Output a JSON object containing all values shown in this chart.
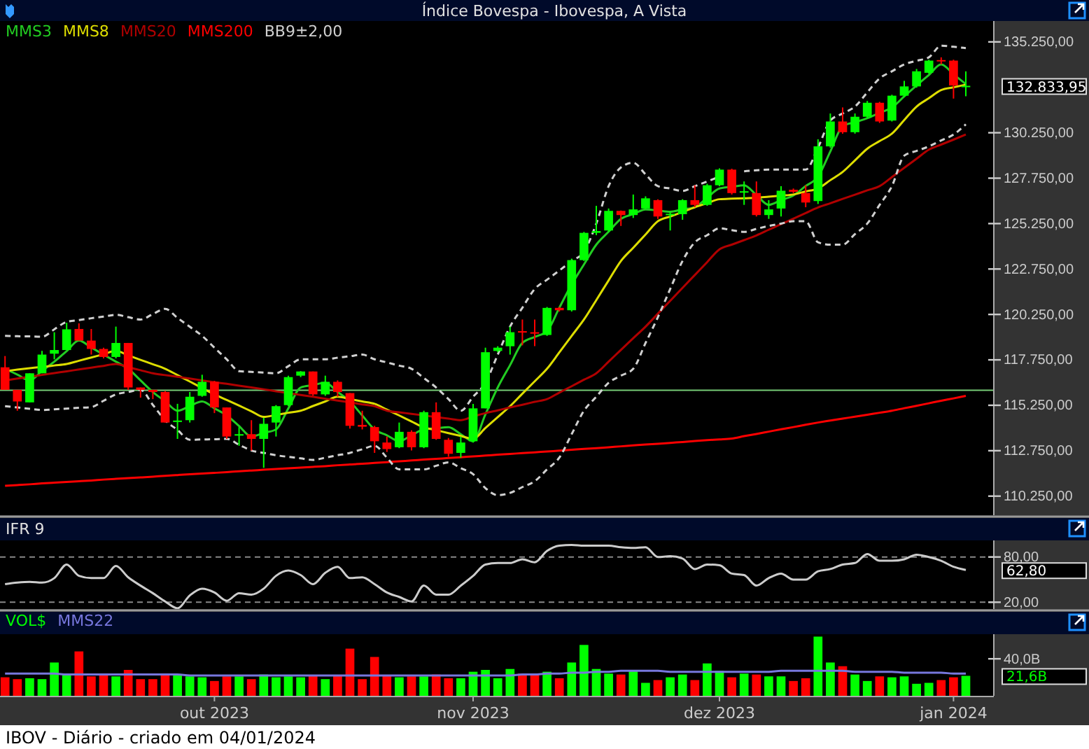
{
  "chart_data": [
    {
      "type": "candlestick",
      "title": "Índice Bovespa - Ibovespa, A Vista",
      "legend": "top left",
      "tick_labels": "y",
      "categories": [
        null,
        null,
        null,
        null,
        null,
        null,
        null,
        null,
        null,
        null,
        null,
        null,
        null,
        null,
        null,
        null,
        null,
        null,
        null,
        null,
        null,
        null,
        null,
        null,
        null,
        null,
        null,
        null,
        null,
        null,
        null,
        null,
        null,
        null,
        null,
        null,
        null,
        null,
        null,
        null,
        null,
        null,
        null,
        null,
        null,
        null,
        null,
        null,
        null,
        null,
        null,
        null,
        null,
        null,
        null,
        null,
        null,
        null,
        null,
        null,
        null,
        null,
        null,
        null,
        null,
        null,
        null,
        null,
        null,
        null,
        null,
        null,
        null,
        null,
        null,
        null,
        null,
        null,
        null
      ],
      "ohlc": [
        [
          117340,
          117960,
          116100,
          116100
        ],
        [
          116100,
          116100,
          114950,
          115460
        ],
        [
          115410,
          117010,
          115410,
          117010
        ],
        [
          117010,
          118240,
          117010,
          118040
        ],
        [
          118090,
          119270,
          117780,
          118290
        ],
        [
          118290,
          119790,
          118290,
          119430
        ],
        [
          119450,
          119760,
          118810,
          118810
        ],
        [
          118810,
          119450,
          118040,
          118350
        ],
        [
          118350,
          118420,
          117830,
          117910
        ],
        [
          117910,
          119580,
          117830,
          118680
        ],
        [
          118680,
          118680,
          116100,
          116230
        ],
        [
          116230,
          116230,
          115670,
          116100
        ],
        [
          116100,
          116100,
          115590,
          115980
        ],
        [
          115980,
          116030,
          114300,
          114300
        ],
        [
          114330,
          115330,
          113400,
          114410
        ],
        [
          114430,
          115980,
          114300,
          115720
        ],
        [
          115770,
          116930,
          115720,
          116540
        ],
        [
          116540,
          116590,
          114820,
          115130
        ],
        [
          115130,
          115130,
          113400,
          113530
        ],
        [
          113580,
          114050,
          113020,
          113660
        ],
        [
          113660,
          114430,
          112760,
          113400
        ],
        [
          113400,
          114560,
          111810,
          114230
        ],
        [
          114300,
          115260,
          113530,
          115200
        ],
        [
          115260,
          116880,
          115200,
          116800
        ],
        [
          116880,
          117130,
          116800,
          117110
        ],
        [
          117110,
          117110,
          115770,
          115850
        ],
        [
          115850,
          116880,
          115770,
          116540
        ],
        [
          116540,
          116620,
          115720,
          115980
        ],
        [
          115920,
          115920,
          113970,
          114120
        ],
        [
          114170,
          114950,
          113920,
          114070
        ],
        [
          114050,
          114120,
          112630,
          113270
        ],
        [
          113200,
          113530,
          112680,
          112840
        ],
        [
          112940,
          114300,
          112890,
          113790
        ],
        [
          113790,
          113870,
          112760,
          112940
        ],
        [
          112940,
          114950,
          112890,
          114870
        ],
        [
          114870,
          115410,
          113350,
          113400
        ],
        [
          113350,
          113450,
          112420,
          112580
        ],
        [
          112630,
          113530,
          112370,
          113200
        ],
        [
          113270,
          115330,
          113200,
          115080
        ],
        [
          115080,
          118420,
          115080,
          118170
        ],
        [
          118240,
          118500,
          118170,
          118420
        ],
        [
          118500,
          119580,
          118040,
          119270
        ],
        [
          119330,
          119970,
          118550,
          119250
        ],
        [
          119270,
          119970,
          118500,
          119220
        ],
        [
          119120,
          120660,
          119070,
          120610
        ],
        [
          120610,
          120660,
          120410,
          120480
        ],
        [
          120480,
          123320,
          120410,
          123240
        ],
        [
          123240,
          124790,
          123190,
          124740
        ],
        [
          124740,
          126230,
          124610,
          124840
        ],
        [
          124870,
          126080,
          124810,
          125950
        ],
        [
          125950,
          125970,
          125120,
          125720
        ],
        [
          125720,
          126850,
          125560,
          126030
        ],
        [
          126080,
          126750,
          126030,
          126640
        ],
        [
          126540,
          126590,
          125510,
          125640
        ],
        [
          125720,
          125900,
          124870,
          125790
        ],
        [
          125770,
          126590,
          125460,
          126540
        ],
        [
          126540,
          127360,
          126150,
          126280
        ],
        [
          126280,
          127440,
          126230,
          127360
        ],
        [
          127360,
          128290,
          127310,
          128220
        ],
        [
          128220,
          128270,
          126850,
          126930
        ],
        [
          126980,
          127570,
          126280,
          127030
        ],
        [
          126930,
          127570,
          125640,
          125720
        ],
        [
          125720,
          126540,
          125510,
          126030
        ],
        [
          126080,
          127310,
          125640,
          127060
        ],
        [
          127110,
          127180,
          126930,
          127000
        ],
        [
          126930,
          127360,
          126150,
          126410
        ],
        [
          126490,
          129890,
          126330,
          129500
        ],
        [
          129500,
          131310,
          129430,
          130870
        ],
        [
          130870,
          131640,
          130200,
          130280
        ],
        [
          130280,
          131310,
          130200,
          131130
        ],
        [
          131130,
          132000,
          131050,
          131900
        ],
        [
          131900,
          131950,
          130790,
          130870
        ],
        [
          130920,
          132340,
          130870,
          132290
        ],
        [
          132290,
          133110,
          132210,
          132800
        ],
        [
          132800,
          133760,
          132730,
          133630
        ],
        [
          133550,
          134270,
          133500,
          134220
        ],
        [
          134250,
          134400,
          134010,
          134190
        ],
        [
          134220,
          134270,
          132130,
          132850
        ],
        [
          132830,
          133630,
          132260,
          132833.95
        ]
      ],
      "colors": [
        "#ff0000",
        "#ff0000",
        "#00ff00",
        "#00ff00",
        "#00ff00",
        "#00ff00",
        "#ff0000",
        "#ff0000",
        "#ff0000",
        "#00ff00",
        "#ff0000",
        "#ff0000",
        "#ff0000",
        "#ff0000",
        "#00ff00",
        "#00ff00",
        "#00ff00",
        "#ff0000",
        "#ff0000",
        "#00ff00",
        "#ff0000",
        "#00ff00",
        "#00ff00",
        "#00ff00",
        "#00ff00",
        "#ff0000",
        "#00ff00",
        "#ff0000",
        "#ff0000",
        "#ff0000",
        "#ff0000",
        "#ff0000",
        "#00ff00",
        "#ff0000",
        "#00ff00",
        "#ff0000",
        "#ff0000",
        "#00ff00",
        "#00ff00",
        "#00ff00",
        "#00ff00",
        "#00ff00",
        "#ff0000",
        "#ff0000",
        "#00ff00",
        "#ff0000",
        "#00ff00",
        "#00ff00",
        "#00ff00",
        "#00ff00",
        "#ff0000",
        "#00ff00",
        "#00ff00",
        "#ff0000",
        "#00ff00",
        "#00ff00",
        "#ff0000",
        "#00ff00",
        "#00ff00",
        "#ff0000",
        "#00ff00",
        "#ff0000",
        "#00ff00",
        "#00ff00",
        "#ff0000",
        "#ff0000",
        "#00ff00",
        "#00ff00",
        "#ff0000",
        "#00ff00",
        "#00ff00",
        "#ff0000",
        "#00ff00",
        "#00ff00",
        "#00ff00",
        "#00ff00",
        "#ff0000",
        "#ff0000",
        "#00ff00"
      ],
      "series": [
        {
          "name": "MMS3",
          "type": "line",
          "color": "#22cc22",
          "values": [
            117260,
            116940,
            116620,
            117140,
            117650,
            118230,
            118810,
            118430,
            118040,
            117650,
            117260,
            116620,
            115980,
            115470,
            114950,
            115210,
            115460,
            115080,
            114690,
            114110,
            113530,
            113730,
            113920,
            115080,
            116230,
            116360,
            116490,
            115980,
            115460,
            114690,
            113920,
            113600,
            113270,
            113600,
            113920,
            113980,
            114040,
            113660,
            113270,
            114750,
            116230,
            117460,
            118680,
            119010,
            119330,
            120620,
            121900,
            123000,
            124090,
            124800,
            125510,
            125770,
            126030,
            125970,
            125900,
            126030,
            126150,
            126670,
            127180,
            127270,
            127360,
            126820,
            126280,
            126540,
            126800,
            127320,
            127830,
            129220,
            130610,
            130830,
            131050,
            131350,
            131640,
            132250,
            132850,
            133430,
            134010,
            133470,
            132930
          ]
        },
        {
          "name": "MMS8",
          "type": "line",
          "color": "#dddd00",
          "values": [
            117130,
            117210,
            117290,
            117360,
            117440,
            117520,
            117700,
            117880,
            118060,
            118240,
            118000,
            117750,
            117510,
            117260,
            116910,
            116560,
            116200,
            115850,
            115540,
            115230,
            114920,
            114610,
            114720,
            114840,
            114950,
            115210,
            115460,
            115720,
            115590,
            115460,
            115330,
            115010,
            114690,
            114360,
            114040,
            113880,
            113720,
            113560,
            113400,
            114000,
            114600,
            115200,
            115890,
            116570,
            117260,
            118160,
            119070,
            119970,
            121040,
            122120,
            123190,
            123920,
            124650,
            125380,
            125640,
            125890,
            126150,
            126370,
            126590,
            126620,
            126640,
            126670,
            126730,
            126790,
            126850,
            127020,
            127180,
            127640,
            128090,
            128730,
            129370,
            129790,
            130200,
            130950,
            131690,
            132150,
            132600,
            132750,
            132900
          ]
        },
        {
          "name": "MMS20",
          "type": "line",
          "color": "#b00000",
          "values": [
            116620,
            116720,
            116820,
            116920,
            117020,
            117120,
            117220,
            117320,
            117420,
            117520,
            117350,
            117180,
            117010,
            116910,
            116820,
            116720,
            116620,
            116520,
            116430,
            116330,
            116230,
            116130,
            116020,
            115920,
            115820,
            115720,
            115610,
            115510,
            115410,
            115300,
            115200,
            114950,
            114860,
            114780,
            114690,
            114600,
            114520,
            114430,
            114630,
            114820,
            114970,
            115130,
            115280,
            115440,
            115590,
            115950,
            116300,
            116660,
            117010,
            117650,
            118300,
            118940,
            119580,
            120290,
            121000,
            121710,
            122420,
            123130,
            123830,
            124090,
            124340,
            124600,
            124910,
            125220,
            125520,
            125830,
            126140,
            126370,
            126610,
            126840,
            127080,
            127310,
            127810,
            128320,
            128820,
            129320,
            129600,
            129870,
            130150
          ]
        },
        {
          "name": "MMS200",
          "type": "line",
          "color": "#ff0000",
          "values": [
            110820,
            110860,
            110900,
            110950,
            110990,
            111030,
            111070,
            111110,
            111160,
            111200,
            111240,
            111280,
            111320,
            111370,
            111410,
            111450,
            111490,
            111530,
            111570,
            111620,
            111660,
            111700,
            111740,
            111780,
            111820,
            111860,
            111900,
            111950,
            111990,
            112030,
            112080,
            112120,
            112170,
            112210,
            112260,
            112300,
            112350,
            112390,
            112440,
            112480,
            112530,
            112570,
            112620,
            112660,
            112710,
            112750,
            112800,
            112850,
            112890,
            112940,
            112990,
            113040,
            113090,
            113130,
            113180,
            113230,
            113280,
            113330,
            113370,
            113420,
            113550,
            113670,
            113800,
            113930,
            114050,
            114180,
            114300,
            114410,
            114520,
            114620,
            114730,
            114840,
            114950,
            115090,
            115220,
            115360,
            115500,
            115630,
            115770
          ]
        },
        {
          "name": "BB9±2,00",
          "type": "line",
          "color": "#d0d0d0",
          "line_style": "dashed",
          "values": [
            119070,
            119050,
            119040,
            119020,
            119430,
            119840,
            119940,
            120040,
            120130,
            120230,
            120100,
            119970,
            120270,
            120560,
            120060,
            119570,
            119070,
            118420,
            117780,
            117130,
            117090,
            117050,
            117010,
            117400,
            117780,
            117780,
            117780,
            117870,
            117950,
            118040,
            117780,
            117610,
            117430,
            117260,
            116750,
            116230,
            115590,
            114950,
            115720,
            116490,
            118040,
            119580,
            120620,
            121650,
            122160,
            122670,
            123190,
            123700,
            125250,
            127310,
            128340,
            128600,
            127960,
            127310,
            127180,
            127050,
            127310,
            127570,
            127830,
            null,
            128130,
            128180,
            128220,
            128220,
            128220,
            128220,
            129430,
            130920,
            131310,
            131690,
            132470,
            133240,
            133630,
            134010,
            134210,
            134400,
            135040,
            134980,
            134910
          ]
        },
        {
          "type": "line",
          "color": "#d0d0d0",
          "line_style": "dashed",
          "values": [
            115200,
            115130,
            115060,
            114990,
            115030,
            115070,
            115110,
            115150,
            115500,
            115850,
            115980,
            116100,
            115270,
            114430,
            113890,
            113350,
            113370,
            113380,
            113400,
            113080,
            112760,
            112630,
            112500,
            112410,
            112330,
            112240,
            112370,
            112500,
            112630,
            112830,
            113020,
            112370,
            111720,
            111720,
            111720,
            111920,
            112110,
            111790,
            111460,
            110690,
            110300,
            110430,
            110750,
            111070,
            111720,
            112370,
            113660,
            114950,
            115720,
            116490,
            116880,
            117260,
            118680,
            120100,
            121650,
            123190,
            124220,
            124610,
            124990,
            124890,
            124790,
            124960,
            125120,
            125250,
            125380,
            125380,
            124220,
            124090,
            124090,
            124670,
            125250,
            126280,
            127310,
            128990,
            129250,
            129500,
            129830,
            130150,
            130710
          ]
        }
      ],
      "ylim": [
        109200,
        136400
      ],
      "yticks": [
        {
          "value": 110250,
          "label": "110.250,00"
        },
        {
          "value": 112750,
          "label": "112.750,00"
        },
        {
          "value": 115250,
          "label": "115.250,00"
        },
        {
          "value": 117750,
          "label": "117.750,00"
        },
        {
          "value": 120250,
          "label": "120.250,00"
        },
        {
          "value": 122750,
          "label": "122.750,00"
        },
        {
          "value": 125250,
          "label": "125.250,00"
        },
        {
          "value": 127750,
          "label": "127.750,00"
        },
        {
          "value": 130250,
          "label": "130.250,00"
        },
        {
          "value": 135250,
          "label": "135.250,00"
        }
      ],
      "ref_lines": [
        {
          "axis": "y",
          "value": 116080,
          "color": "#77cc77"
        }
      ],
      "annotations": [
        "132.833,95"
      ]
    },
    {
      "type": "line",
      "title": "IFR 9",
      "tick_labels": "y",
      "categories": [
        null,
        null,
        null,
        null,
        null,
        null,
        null,
        null,
        null,
        null,
        null,
        null,
        null,
        null,
        null,
        null,
        null,
        null,
        null,
        null,
        null,
        null,
        null,
        null,
        null,
        null,
        null,
        null,
        null,
        null,
        null,
        null,
        null,
        null,
        null,
        null,
        null,
        null,
        null,
        null,
        null,
        null,
        null,
        null,
        null,
        null,
        null,
        null,
        null,
        null,
        null,
        null,
        null,
        null,
        null,
        null,
        null,
        null,
        null,
        null,
        null,
        null,
        null,
        null,
        null,
        null,
        null,
        null,
        null,
        null,
        null,
        null,
        null,
        null,
        null,
        null,
        null,
        null,
        null
      ],
      "series": [
        {
          "color": "#cccccc",
          "values": [
            44,
            46,
            47,
            46,
            52,
            70,
            55,
            52,
            52,
            68,
            53,
            42,
            32,
            21,
            12,
            29,
            38,
            33,
            22,
            32,
            30,
            38,
            55,
            62,
            56,
            44,
            59,
            67,
            52,
            53,
            44,
            33,
            27,
            21,
            42,
            30,
            30,
            42,
            55,
            70,
            72,
            72,
            77,
            73,
            88,
            95,
            96,
            95,
            95,
            95,
            93,
            92,
            93,
            80,
            81,
            78,
            64,
            70,
            69,
            58,
            56,
            42,
            52,
            58,
            50,
            50,
            61,
            64,
            70,
            72,
            84,
            75,
            75,
            77,
            83,
            80,
            75,
            67,
            62.8
          ]
        }
      ],
      "ylim": [
        11,
        102
      ],
      "yticks": [
        {
          "value": 20,
          "label": "20,00"
        },
        {
          "value": 80,
          "label": "80,00"
        }
      ],
      "ref_lines": [
        {
          "axis": "y",
          "value": 80,
          "color": "#888888",
          "line_style": "dashed"
        },
        {
          "axis": "y",
          "value": 20,
          "color": "#888888",
          "line_style": "dashed"
        }
      ],
      "annotations": [
        "62,80"
      ]
    },
    {
      "type": "bar",
      "legend": "top left",
      "categories": [
        null,
        null,
        null,
        null,
        null,
        null,
        null,
        null,
        null,
        null,
        null,
        null,
        null,
        null,
        null,
        null,
        null,
        "out 2023",
        null,
        null,
        null,
        null,
        null,
        null,
        null,
        null,
        null,
        null,
        null,
        null,
        null,
        null,
        null,
        null,
        null,
        null,
        null,
        null,
        "nov 2023",
        null,
        null,
        null,
        null,
        null,
        null,
        null,
        null,
        null,
        null,
        null,
        null,
        null,
        null,
        null,
        null,
        null,
        null,
        null,
        "dez 2023",
        null,
        null,
        null,
        null,
        null,
        null,
        null,
        null,
        null,
        null,
        null,
        null,
        null,
        null,
        null,
        null,
        null,
        null,
        "jan 2024",
        null
      ],
      "series": [
        {
          "name": "VOL$",
          "color": "#00ff00",
          "colors": [
            "#ff0000",
            "#ff0000",
            "#00ff00",
            "#00ff00",
            "#00ff00",
            "#00ff00",
            "#ff0000",
            "#ff0000",
            "#ff0000",
            "#00ff00",
            "#ff0000",
            "#ff0000",
            "#ff0000",
            "#ff0000",
            "#00ff00",
            "#00ff00",
            "#00ff00",
            "#ff0000",
            "#ff0000",
            "#00ff00",
            "#ff0000",
            "#00ff00",
            "#00ff00",
            "#00ff00",
            "#00ff00",
            "#ff0000",
            "#00ff00",
            "#ff0000",
            "#ff0000",
            "#ff0000",
            "#ff0000",
            "#ff0000",
            "#00ff00",
            "#ff0000",
            "#00ff00",
            "#ff0000",
            "#ff0000",
            "#00ff00",
            "#00ff00",
            "#00ff00",
            "#00ff00",
            "#00ff00",
            "#ff0000",
            "#ff0000",
            "#00ff00",
            "#ff0000",
            "#00ff00",
            "#00ff00",
            "#00ff00",
            "#00ff00",
            "#ff0000",
            "#00ff00",
            "#00ff00",
            "#ff0000",
            "#00ff00",
            "#00ff00",
            "#ff0000",
            "#00ff00",
            "#00ff00",
            "#ff0000",
            "#00ff00",
            "#ff0000",
            "#00ff00",
            "#00ff00",
            "#ff0000",
            "#ff0000",
            "#00ff00",
            "#00ff00",
            "#ff0000",
            "#00ff00",
            "#00ff00",
            "#ff0000",
            "#00ff00",
            "#00ff00",
            "#00ff00",
            "#00ff00",
            "#ff0000",
            "#ff0000",
            "#00ff00"
          ],
          "values": [
            20,
            18,
            19,
            18,
            36,
            24,
            48,
            21,
            22,
            21,
            28,
            18,
            18,
            23,
            23,
            21,
            20,
            16,
            21,
            21,
            18,
            23,
            20,
            21,
            20,
            22,
            18,
            22,
            51,
            18,
            42,
            22,
            20,
            21,
            21,
            23,
            19,
            19,
            26,
            28,
            19,
            29,
            24,
            24,
            26,
            19,
            36,
            55,
            29,
            24,
            23,
            27,
            14,
            17,
            20,
            23,
            17,
            35,
            27,
            20,
            24,
            23,
            21,
            21,
            16,
            19,
            64,
            36,
            32,
            23,
            16,
            21,
            20,
            21,
            13,
            14,
            17,
            20,
            21.6
          ]
        },
        {
          "name": "MMS22",
          "type": "line",
          "color": "#7777dd",
          "values": [
            24,
            24,
            24,
            24,
            24,
            23,
            23,
            23,
            23,
            23,
            23,
            23,
            23,
            23,
            23,
            22,
            22,
            22,
            22,
            22,
            22,
            22,
            22,
            22,
            22,
            22,
            22,
            22,
            22,
            22,
            22,
            22,
            22,
            22,
            22,
            22,
            22,
            22,
            22,
            22,
            22,
            22,
            23,
            23,
            24,
            24,
            25,
            25,
            26,
            26,
            27,
            27,
            27,
            27,
            26,
            26,
            26,
            26,
            26,
            26,
            26,
            26,
            26,
            27,
            27,
            27,
            27,
            27,
            27,
            26,
            26,
            26,
            26,
            25,
            25,
            25,
            25,
            24,
            24
          ]
        }
      ],
      "ylim": [
        0,
        66.6
      ],
      "yticks": [
        {
          "value": 40,
          "label": "40,0B"
        }
      ],
      "annotations": [
        "IBOV - Diário - criado em 04/01/2024",
        "21,6B"
      ]
    }
  ]
}
